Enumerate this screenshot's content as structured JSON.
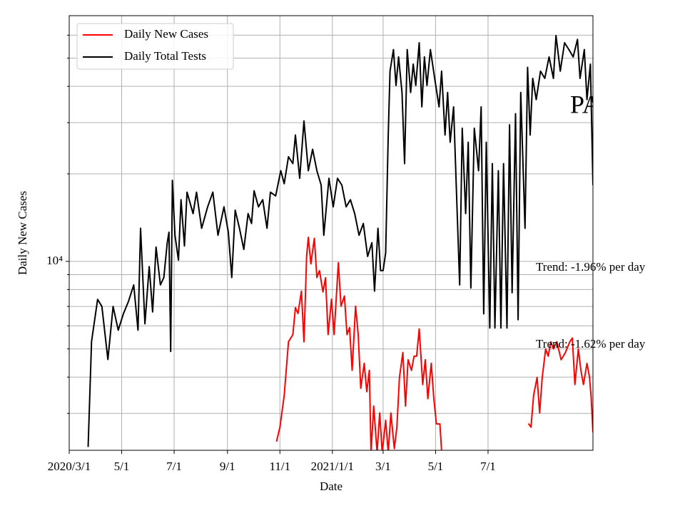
{
  "chart_data": {
    "type": "line",
    "ylabel": "Daily New Cases",
    "xlabel": "Date",
    "yscale": "log",
    "grid": true,
    "legend": "upper left",
    "xlim": [
      "2020-03-01",
      "2021-10-31"
    ],
    "xticks": [
      {
        "value": "2020-03-01",
        "label": "2020/3/1"
      },
      {
        "value": "2020-05-01",
        "label": "5/1"
      },
      {
        "value": "2020-07-01",
        "label": "7/1"
      },
      {
        "value": "2020-09-01",
        "label": "9/1"
      },
      {
        "value": "2020-11-01",
        "label": "11/1"
      },
      {
        "value": "2021-01-01",
        "label": "2021/1/1"
      },
      {
        "value": "2021-03-01",
        "label": "3/1"
      },
      {
        "value": "2021-05-01",
        "label": "5/1"
      },
      {
        "value": "2021-07-01",
        "label": "7/1"
      }
    ],
    "ylim": [
      2240,
      70000
    ],
    "yticks": [
      {
        "value": 10000,
        "label": "10⁴"
      }
    ],
    "yminor": [
      3000,
      4000,
      5000,
      6000,
      7000,
      8000,
      9000,
      20000,
      30000,
      40000,
      50000,
      60000
    ],
    "annotations": [
      "PA",
      "Trend: -1.96% per day",
      "Trend: -1.62% per day"
    ],
    "series": [
      {
        "name": "Daily New Cases",
        "color": "#ff0000",
        "x": [
          "2020-10-28",
          "2020-11-01",
          "2020-11-06",
          "2020-11-11",
          "2020-11-16",
          "2020-11-19",
          "2020-11-22",
          "2020-11-26",
          "2020-11-29",
          "2020-12-02",
          "2020-12-04",
          "2020-12-07",
          "2020-12-11",
          "2020-12-14",
          "2020-12-17",
          "2020-12-21",
          "2020-12-24",
          "2020-12-27",
          "2020-12-31",
          "2021-01-03",
          "2021-01-08",
          "2021-01-11",
          "2021-01-15",
          "2021-01-18",
          "2021-01-21",
          "2021-01-24",
          "2021-01-28",
          "2021-01-31",
          "2021-02-03",
          "2021-02-07",
          "2021-02-10",
          "2021-02-13",
          "2021-02-15",
          "2021-02-18",
          "2021-02-22",
          "2021-02-25",
          "2021-02-28",
          "2021-03-04",
          "2021-03-07",
          "2021-03-10",
          "2021-03-14",
          "2021-03-17",
          "2021-03-20",
          "2021-03-24",
          "2021-03-27",
          "2021-03-30",
          "2021-04-03",
          "2021-04-06",
          "2021-04-09",
          "2021-04-12",
          "2021-04-16",
          "2021-04-19",
          "2021-04-22",
          "2021-04-26",
          "2021-04-29",
          "2021-05-02",
          "2021-05-06",
          "2021-05-09",
          "2021-06-15",
          "2021-08-17",
          "2021-08-20",
          "2021-08-23",
          "2021-08-27",
          "2021-08-30",
          "2021-09-02",
          "2021-09-06",
          "2021-09-09",
          "2021-09-12",
          "2021-09-15",
          "2021-09-19",
          "2021-09-24",
          "2021-09-29",
          "2021-10-04",
          "2021-10-07",
          "2021-10-10",
          "2021-10-14",
          "2021-10-17",
          "2021-10-20",
          "2021-10-24",
          "2021-10-27",
          "2021-10-29",
          "2021-10-31"
        ],
        "values": [
          2400,
          2690,
          3460,
          5290,
          5600,
          6930,
          6620,
          7900,
          5290,
          10400,
          12100,
          9800,
          12000,
          8800,
          9290,
          7850,
          8780,
          5600,
          7410,
          5600,
          9900,
          7010,
          7600,
          5600,
          5920,
          4220,
          7010,
          5600,
          3660,
          4460,
          3560,
          4220,
          2200,
          3180,
          2200,
          3010,
          2200,
          2840,
          2200,
          3010,
          2270,
          2690,
          3990,
          4860,
          3180,
          4590,
          4220,
          4720,
          4720,
          5860,
          3770,
          4590,
          3370,
          4460,
          3370,
          2760,
          2760,
          2000,
          null,
          2770,
          2690,
          3460,
          3990,
          3010,
          3990,
          5000,
          4720,
          5290,
          5000,
          5290,
          4590,
          4860,
          5290,
          5450,
          3770,
          5000,
          4220,
          3770,
          4460,
          3990,
          3370,
          2580
        ]
      },
      {
        "name": "Daily Total Tests",
        "color": "#000000",
        "x": [
          "2020-03-23",
          "2020-03-27",
          "2020-04-03",
          "2020-04-08",
          "2020-04-15",
          "2020-04-21",
          "2020-04-27",
          "2020-05-03",
          "2020-05-09",
          "2020-05-15",
          "2020-05-20",
          "2020-05-23",
          "2020-05-28",
          "2020-06-02",
          "2020-06-06",
          "2020-06-10",
          "2020-06-15",
          "2020-06-19",
          "2020-06-23",
          "2020-06-25",
          "2020-06-27",
          "2020-06-29",
          "2020-07-02",
          "2020-07-06",
          "2020-07-09",
          "2020-07-13",
          "2020-07-16",
          "2020-07-23",
          "2020-07-27",
          "2020-08-02",
          "2020-08-09",
          "2020-08-15",
          "2020-08-21",
          "2020-08-28",
          "2020-09-02",
          "2020-09-06",
          "2020-09-10",
          "2020-09-15",
          "2020-09-20",
          "2020-09-25",
          "2020-09-29",
          "2020-10-02",
          "2020-10-07",
          "2020-10-12",
          "2020-10-17",
          "2020-10-21",
          "2020-10-27",
          "2020-11-02",
          "2020-11-06",
          "2020-11-11",
          "2020-11-16",
          "2020-11-19",
          "2020-11-24",
          "2020-11-29",
          "2020-12-04",
          "2020-12-09",
          "2020-12-14",
          "2020-12-19",
          "2020-12-22",
          "2020-12-28",
          "2021-01-02",
          "2021-01-07",
          "2021-01-12",
          "2021-01-17",
          "2021-01-22",
          "2021-01-27",
          "2021-02-01",
          "2021-02-06",
          "2021-02-11",
          "2021-02-16",
          "2021-02-19",
          "2021-02-23",
          "2021-02-26",
          "2021-03-01",
          "2021-03-04",
          "2021-03-07",
          "2021-03-09",
          "2021-03-13",
          "2021-03-16",
          "2021-03-19",
          "2021-03-23",
          "2021-03-26",
          "2021-03-29",
          "2021-04-02",
          "2021-04-05",
          "2021-04-08",
          "2021-04-12",
          "2021-04-15",
          "2021-04-18",
          "2021-04-21",
          "2021-04-25",
          "2021-04-30",
          "2021-05-05",
          "2021-05-08",
          "2021-05-12",
          "2021-05-15",
          "2021-05-18",
          "2021-05-22",
          "2021-05-25",
          "2021-05-29",
          "2021-06-01",
          "2021-06-05",
          "2021-06-08",
          "2021-06-11",
          "2021-06-15",
          "2021-06-20",
          "2021-06-23",
          "2021-06-26",
          "2021-06-29",
          "2021-07-03",
          "2021-07-06",
          "2021-07-09",
          "2021-07-13",
          "2021-07-16",
          "2021-07-19",
          "2021-07-23",
          "2021-07-26",
          "2021-07-29",
          "2021-08-02",
          "2021-08-05",
          "2021-08-08",
          "2021-08-13",
          "2021-08-16",
          "2021-08-19",
          "2021-08-22",
          "2021-08-26",
          "2021-08-31",
          "2021-09-05",
          "2021-09-10",
          "2021-09-15",
          "2021-09-18",
          "2021-09-23",
          "2021-09-28",
          "2021-10-03",
          "2021-10-08",
          "2021-10-13",
          "2021-10-16",
          "2021-10-21",
          "2021-10-24",
          "2021-10-28",
          "2021-10-31"
        ],
        "values": [
          2300,
          5300,
          7400,
          7000,
          4600,
          7000,
          5800,
          6600,
          7300,
          8300,
          5800,
          13000,
          6100,
          9600,
          6700,
          11200,
          8300,
          8800,
          11600,
          12600,
          4900,
          19000,
          12300,
          10100,
          16300,
          11300,
          17300,
          14600,
          17300,
          13000,
          15400,
          17300,
          12300,
          15400,
          12600,
          8800,
          15000,
          13000,
          11000,
          14600,
          13500,
          17500,
          15400,
          16300,
          13000,
          17300,
          16800,
          20500,
          18500,
          22900,
          21700,
          27200,
          19300,
          30400,
          20500,
          24300,
          20500,
          18300,
          12300,
          19300,
          15400,
          19300,
          18300,
          15400,
          16300,
          14600,
          12300,
          13500,
          10400,
          11600,
          7900,
          13000,
          9300,
          9300,
          10700,
          27200,
          45100,
          53500,
          40300,
          50500,
          38100,
          21700,
          53500,
          38100,
          47700,
          40300,
          56500,
          34000,
          50500,
          40300,
          53500,
          42600,
          34000,
          45100,
          27200,
          38100,
          25700,
          34000,
          18300,
          8300,
          28700,
          14600,
          25700,
          8100,
          28700,
          20500,
          34000,
          6600,
          25700,
          5900,
          21700,
          5900,
          20500,
          5900,
          21700,
          5900,
          29500,
          7800,
          32200,
          6300,
          38100,
          13000,
          46500,
          27200,
          42600,
          36000,
          45100,
          42600,
          50500,
          42600,
          59800,
          45100,
          56500,
          53500,
          50500,
          58000,
          42600,
          53500,
          36000,
          47700,
          18300
        ]
      }
    ]
  }
}
